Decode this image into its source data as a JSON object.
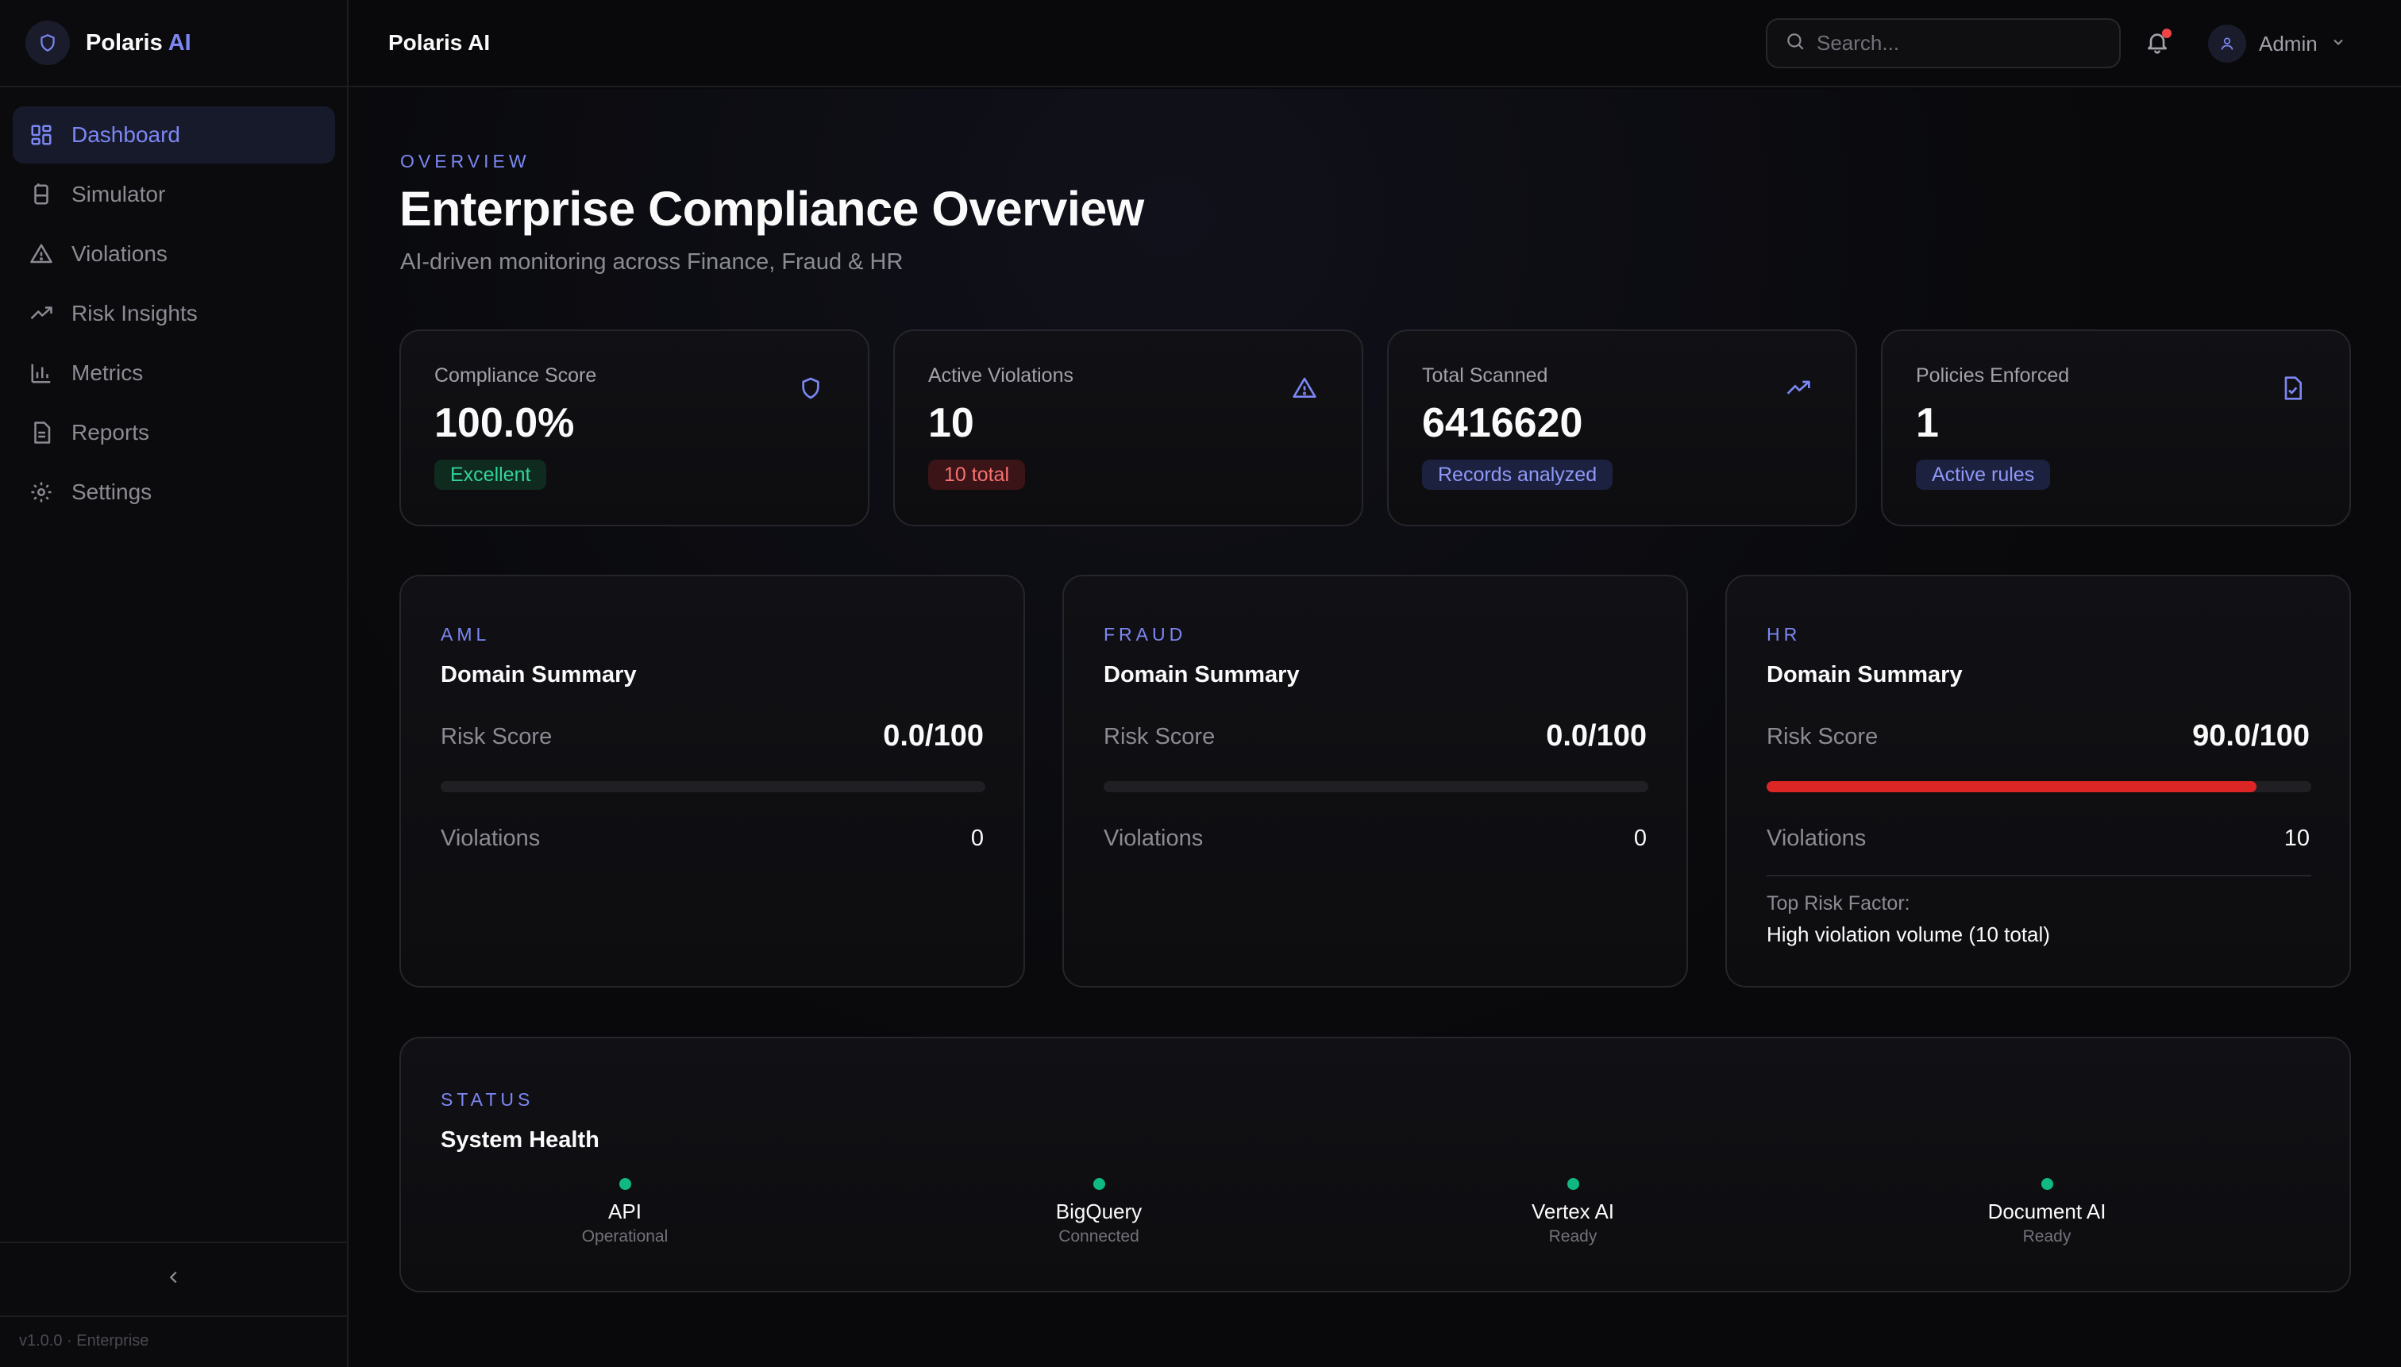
{
  "brand": {
    "name": "Polaris",
    "accent": "AI",
    "accent_color": "#7c87f3"
  },
  "sidebar": {
    "items": [
      {
        "label": "Dashboard",
        "icon": "dashboard-icon",
        "active": true
      },
      {
        "label": "Simulator",
        "icon": "flask-icon"
      },
      {
        "label": "Violations",
        "icon": "warning-icon"
      },
      {
        "label": "Risk Insights",
        "icon": "trending-up-icon"
      },
      {
        "label": "Metrics",
        "icon": "bar-chart-icon"
      },
      {
        "label": "Reports",
        "icon": "document-icon"
      },
      {
        "label": "Settings",
        "icon": "gear-icon"
      }
    ],
    "version": "v1.0.0 · Enterprise"
  },
  "topbar": {
    "title": "Polaris AI",
    "search_placeholder": "Search...",
    "user": "Admin"
  },
  "page": {
    "eyebrow": "OVERVIEW",
    "title": "Enterprise Compliance Overview",
    "subtitle": "AI-driven monitoring across Finance, Fraud & HR"
  },
  "stats": [
    {
      "label": "Compliance Score",
      "value": "100.0%",
      "badge": "Excellent",
      "badge_color": "#34d399",
      "icon": "shield-icon"
    },
    {
      "label": "Active Violations",
      "value": "10",
      "badge": "10 total",
      "badge_color": "#f87171",
      "icon": "warning-icon"
    },
    {
      "label": "Total Scanned",
      "value": "6416620",
      "badge": "Records analyzed",
      "badge_color": "#8f99f7",
      "icon": "trending-up-icon"
    },
    {
      "label": "Policies Enforced",
      "value": "1",
      "badge": "Active rules",
      "badge_color": "#8f99f7",
      "icon": "file-check-icon"
    }
  ],
  "domains": [
    {
      "eyebrow": "AML",
      "title": "Domain Summary",
      "risk_label": "Risk Score",
      "risk_value": "0.0/100",
      "risk_fraction": 0.0,
      "violations_label": "Violations",
      "violations_value": "0"
    },
    {
      "eyebrow": "FRAUD",
      "title": "Domain Summary",
      "risk_label": "Risk Score",
      "risk_value": "0.0/100",
      "risk_fraction": 0.0,
      "violations_label": "Violations",
      "violations_value": "0"
    },
    {
      "eyebrow": "HR",
      "title": "Domain Summary",
      "risk_label": "Risk Score",
      "risk_value": "90.0/100",
      "risk_fraction": 0.9,
      "violations_label": "Violations",
      "violations_value": "10",
      "top_factor_label": "Top Risk Factor:",
      "top_factor_value": "High violation volume (10 total)"
    }
  ],
  "health": {
    "eyebrow": "STATUS",
    "title": "System Health",
    "services": [
      {
        "name": "API",
        "status": "Operational"
      },
      {
        "name": "BigQuery",
        "status": "Connected"
      },
      {
        "name": "Vertex AI",
        "status": "Ready"
      },
      {
        "name": "Document AI",
        "status": "Ready"
      }
    ],
    "status_color": "#10b981"
  }
}
